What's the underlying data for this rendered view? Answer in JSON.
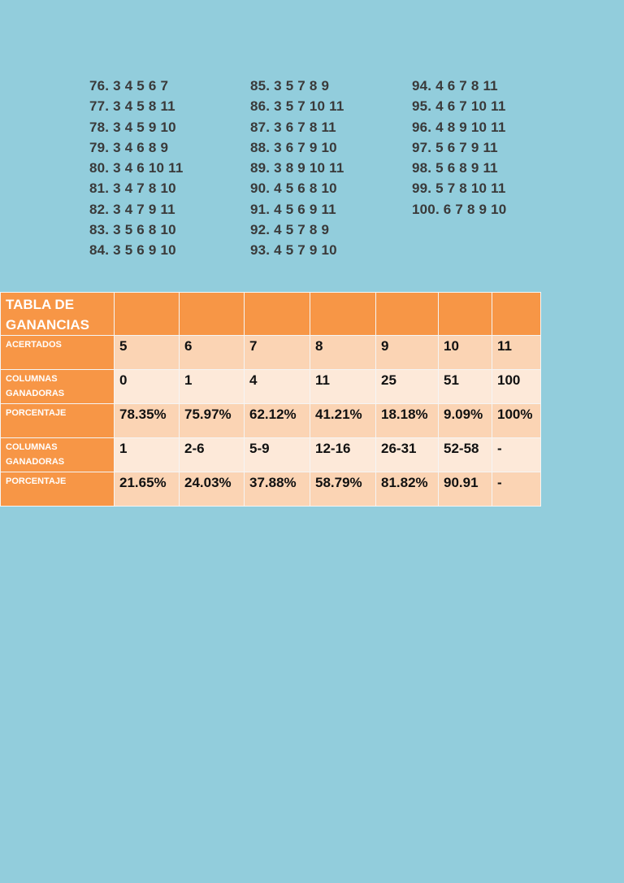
{
  "combinations": {
    "col1": [
      "76. 3 4 5 6 7",
      "77. 3 4 5 8 11",
      "78. 3 4 5 9 10",
      "79. 3 4 6 8 9",
      "80. 3 4 6 10 11",
      "81. 3 4 7 8 10",
      "82. 3 4 7 9 11",
      "83. 3 5 6 8 10",
      "84. 3 5 6 9 10"
    ],
    "col2": [
      "85. 3 5 7 8 9",
      "86. 3 5 7 10 11",
      "87. 3 6 7 8 11",
      "88. 3 6 7 9 10",
      "89. 3 8 9 10 11",
      "90. 4 5 6 8 10",
      "91. 4 5 6 9 11",
      "92. 4 5 7 8 9",
      "93. 4 5 7 9 10"
    ],
    "col3": [
      "94. 4 6 7 8 11",
      "95. 4 6 7 10 11",
      "96. 4 8 9 10 11",
      "97. 5 6 7 9 11",
      "98. 5 6 8 9 11",
      "99. 5 7 8 10 11",
      "100. 6 7 8 9 10"
    ]
  },
  "table": {
    "title": "TABLA DE GANANCIAS",
    "rows": [
      {
        "label": "ACERTADOS",
        "values": [
          "5",
          "6",
          "7",
          "8",
          "9",
          "10",
          "11"
        ]
      },
      {
        "label": "COLUMNAS GANADORAS",
        "values": [
          "0",
          "1",
          "4",
          "11",
          "25",
          "51",
          "100"
        ]
      },
      {
        "label": "PORCENTAJE",
        "values": [
          "78.35%",
          "75.97%",
          "62.12%",
          "41.21%",
          "18.18%",
          "9.09%",
          "100%"
        ]
      },
      {
        "label": "COLUMNAS GANADORAS",
        "values": [
          "1",
          "2-6",
          "5-9",
          "12-16",
          "26-31",
          "52-58",
          "-"
        ]
      },
      {
        "label": "PORCENTAJE",
        "values": [
          "21.65%",
          "24.03%",
          "37.88%",
          "58.79%",
          "81.82%",
          "90.91",
          "-"
        ]
      }
    ]
  },
  "colors": {
    "background": "#92cddc",
    "header_orange": "#f79646",
    "cell_dark": "#fbd4b4",
    "cell_light": "#fde9d9"
  }
}
